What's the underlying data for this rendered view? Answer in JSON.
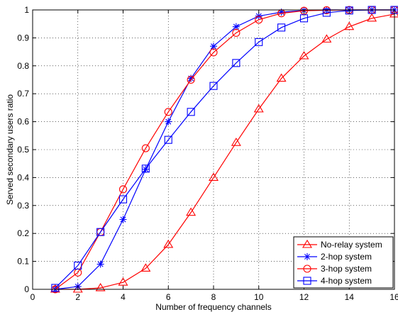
{
  "chart_data": {
    "type": "line",
    "xlabel": "Number of frequency channels",
    "ylabel": "Served secondary users ratio",
    "xlim": [
      0,
      16
    ],
    "ylim": [
      0,
      1
    ],
    "xticks": [
      "0",
      "2",
      "4",
      "6",
      "8",
      "10",
      "12",
      "14",
      "16"
    ],
    "yticks": [
      "0",
      "0.1",
      "0.2",
      "0.3",
      "0.4",
      "0.5",
      "0.6",
      "0.7",
      "0.8",
      "0.9",
      "1"
    ],
    "grid": true,
    "legend_position": "bottom-right",
    "x": [
      1,
      2,
      3,
      4,
      5,
      6,
      7,
      8,
      9,
      10,
      11,
      12,
      13,
      14,
      15,
      16
    ],
    "series": [
      {
        "name": "No-relay system",
        "color": "#ff0000",
        "marker": "triangle",
        "values": [
          0,
          0,
          0.005,
          0.025,
          0.075,
          0.16,
          0.275,
          0.4,
          0.525,
          0.645,
          0.755,
          0.835,
          0.895,
          0.94,
          0.97,
          0.985
        ]
      },
      {
        "name": "2-hop system",
        "color": "#0000ff",
        "marker": "star",
        "values": [
          0,
          0.01,
          0.09,
          0.25,
          0.43,
          0.6,
          0.755,
          0.87,
          0.94,
          0.978,
          0.992,
          0.998,
          1,
          1,
          1,
          1
        ]
      },
      {
        "name": "3-hop system",
        "color": "#ff0000",
        "marker": "circle",
        "values": [
          0,
          0.06,
          0.205,
          0.358,
          0.505,
          0.635,
          0.75,
          0.848,
          0.918,
          0.965,
          0.988,
          0.997,
          0.999,
          1,
          1,
          1
        ]
      },
      {
        "name": "4-hop system",
        "color": "#0000ff",
        "marker": "square",
        "values": [
          0.005,
          0.085,
          0.205,
          0.322,
          0.432,
          0.535,
          0.635,
          0.728,
          0.81,
          0.885,
          0.937,
          0.97,
          0.99,
          0.998,
          1,
          1
        ]
      }
    ]
  }
}
